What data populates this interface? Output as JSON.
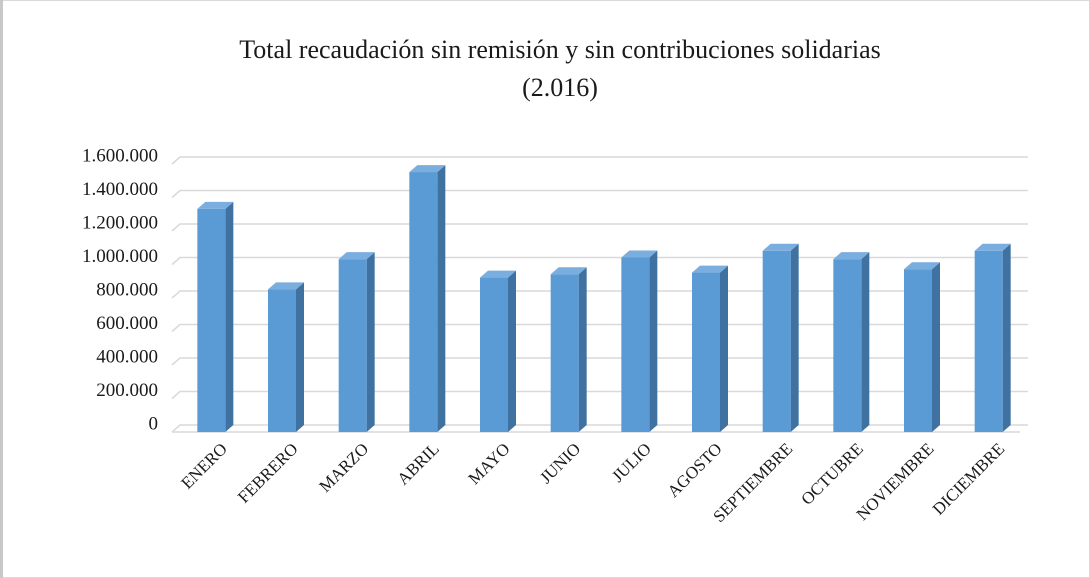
{
  "chart_data": {
    "type": "bar3d",
    "title": "Total recaudación sin remisión y sin contribuciones solidarias",
    "subtitle": "(2.016)",
    "categories": [
      "ENERO",
      "FEBRERO",
      "MARZO",
      "ABRIL",
      "MAYO",
      "JUNIO",
      "JULIO",
      "AGOSTO",
      "SEPTIEMBRE",
      "OCTUBRE",
      "NOVIEMBRE",
      "DICIEMBRE"
    ],
    "values": [
      1290000,
      810000,
      990000,
      1510000,
      880000,
      900000,
      1000000,
      910000,
      1040000,
      990000,
      930000,
      1040000
    ],
    "color": "#5b9bd5",
    "ylim": [
      0,
      1600000
    ],
    "yticks": [
      0,
      {
        "value": 200000,
        "label": "200.000"
      },
      {
        "value": 400000,
        "label": "400.000"
      },
      {
        "value": 600000,
        "label": "600.000"
      },
      {
        "value": 800000,
        "label": "800.000"
      },
      {
        "value": 1000000,
        "label": "1.000.000"
      },
      {
        "value": 1200000,
        "label": "1.200.000"
      },
      {
        "value": 1400000,
        "label": "1.400.000"
      },
      {
        "value": 1600000,
        "label": "1.600.000"
      }
    ],
    "grid": true
  }
}
